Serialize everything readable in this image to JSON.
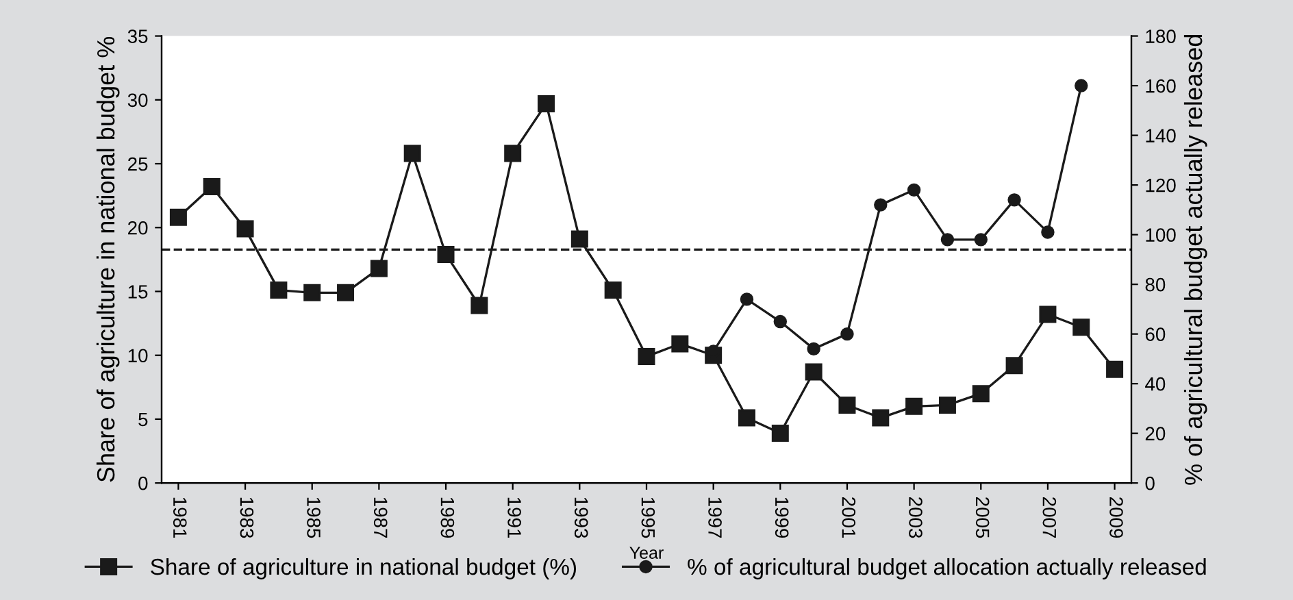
{
  "chart_data": {
    "type": "line",
    "xlabel": "Year",
    "ylabel": "Share of agriculture in national budget %",
    "y2label": "% of agricultural budget actually released",
    "x": [
      1981,
      1982,
      1983,
      1984,
      1985,
      1986,
      1987,
      1988,
      1989,
      1990,
      1991,
      1992,
      1993,
      1994,
      1995,
      1996,
      1997,
      1998,
      1999,
      2000,
      2001,
      2002,
      2003,
      2004,
      2005,
      2006,
      2007,
      2008,
      2009
    ],
    "series": [
      {
        "name": "Share of agriculture in national budget (%)",
        "color": "#1a1a1a",
        "marker": "square",
        "values": [
          20.8,
          23.2,
          19.9,
          15.1,
          14.9,
          14.9,
          16.8,
          25.8,
          17.9,
          13.9,
          25.8,
          29.7,
          19.1,
          15.1,
          9.9,
          10.9,
          10.0,
          5.1,
          3.9,
          8.7,
          6.1,
          5.1,
          6.0,
          6.1,
          7.0,
          9.2,
          13.2,
          12.2,
          8.9
        ]
      },
      {
        "name": "% of agricultural budget allocation actually released",
        "color": "#1a1a1a",
        "marker": "circle",
        "axis": "y2",
        "values": [
          null,
          null,
          null,
          null,
          null,
          null,
          null,
          null,
          null,
          null,
          null,
          null,
          null,
          null,
          null,
          null,
          53,
          74,
          65,
          54,
          60,
          112,
          118,
          98,
          98,
          114,
          101,
          160,
          null
        ]
      }
    ],
    "xlim": [
      1980.5,
      2009.5
    ],
    "xticks": [
      1981,
      1983,
      1985,
      1987,
      1989,
      1991,
      1993,
      1995,
      1997,
      1999,
      2001,
      2003,
      2005,
      2007,
      2009
    ],
    "ylim": [
      0,
      35
    ],
    "yticks": [
      0,
      5,
      10,
      15,
      20,
      25,
      30,
      35
    ],
    "y2lim": [
      0,
      180
    ],
    "y2ticks": [
      0,
      20,
      40,
      60,
      80,
      100,
      120,
      140,
      160,
      180
    ],
    "ref_lines": [
      {
        "axis": "y2",
        "value": 94,
        "line_style": "dashed",
        "color": "#1a1a1a"
      }
    ],
    "grid": false,
    "legend": "bottom"
  }
}
